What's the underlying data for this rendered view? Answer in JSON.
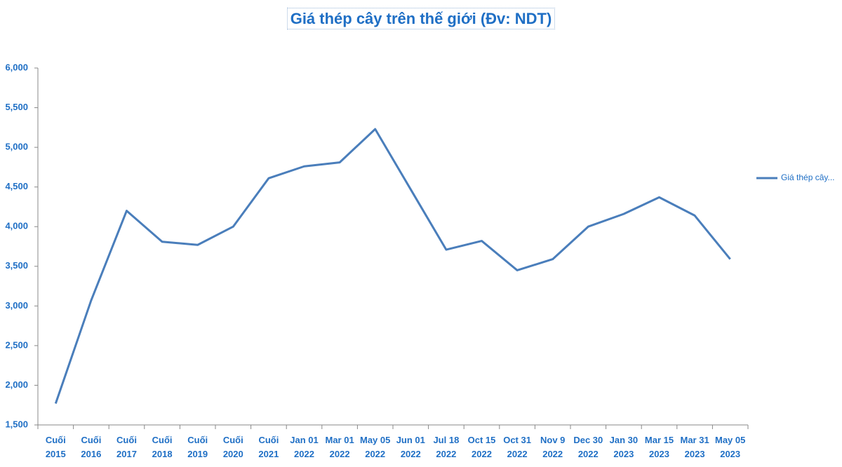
{
  "chart_data": {
    "type": "line",
    "title": "Giá thép cây trên thế giới (Đv: NDT)",
    "categories": [
      "Cuối\n2015",
      "Cuối\n2016",
      "Cuối\n2017",
      "Cuối\n2018",
      "Cuối\n2019",
      "Cuối\n2020",
      "Cuối\n2021",
      "Jan 01\n2022",
      "Mar 01\n2022",
      "May 05\n2022",
      "Jun 01\n2022",
      "Jul 18\n2022",
      "Oct 15\n2022",
      "Oct 31\n2022",
      "Nov 9\n2022",
      "Dec 30\n2022",
      "Jan 30\n2023",
      "Mar 15\n2023",
      "Mar 31\n2023",
      "May 05\n2023"
    ],
    "series": [
      {
        "name": "Giá thép cây...",
        "color": "#4a7ebb",
        "values": [
          1770,
          3070,
          4200,
          3810,
          3770,
          4000,
          4610,
          4760,
          4810,
          5230,
          4470,
          3710,
          3820,
          3450,
          3590,
          4000,
          4160,
          4370,
          4140,
          3590
        ]
      }
    ],
    "ylim": [
      1500,
      6000
    ],
    "yticks": [
      {
        "value": 1500,
        "label": "1,500"
      },
      {
        "value": 2000,
        "label": "2,000"
      },
      {
        "value": 2500,
        "label": "2,500"
      },
      {
        "value": 3000,
        "label": "3,000"
      },
      {
        "value": 3500,
        "label": "3,500"
      },
      {
        "value": 4000,
        "label": "4,000"
      },
      {
        "value": 4500,
        "label": "4,500"
      },
      {
        "value": 5000,
        "label": "5,000"
      },
      {
        "value": 5500,
        "label": "5,500"
      },
      {
        "value": 6000,
        "label": "6,000"
      }
    ],
    "grid": false,
    "legend": "right"
  }
}
